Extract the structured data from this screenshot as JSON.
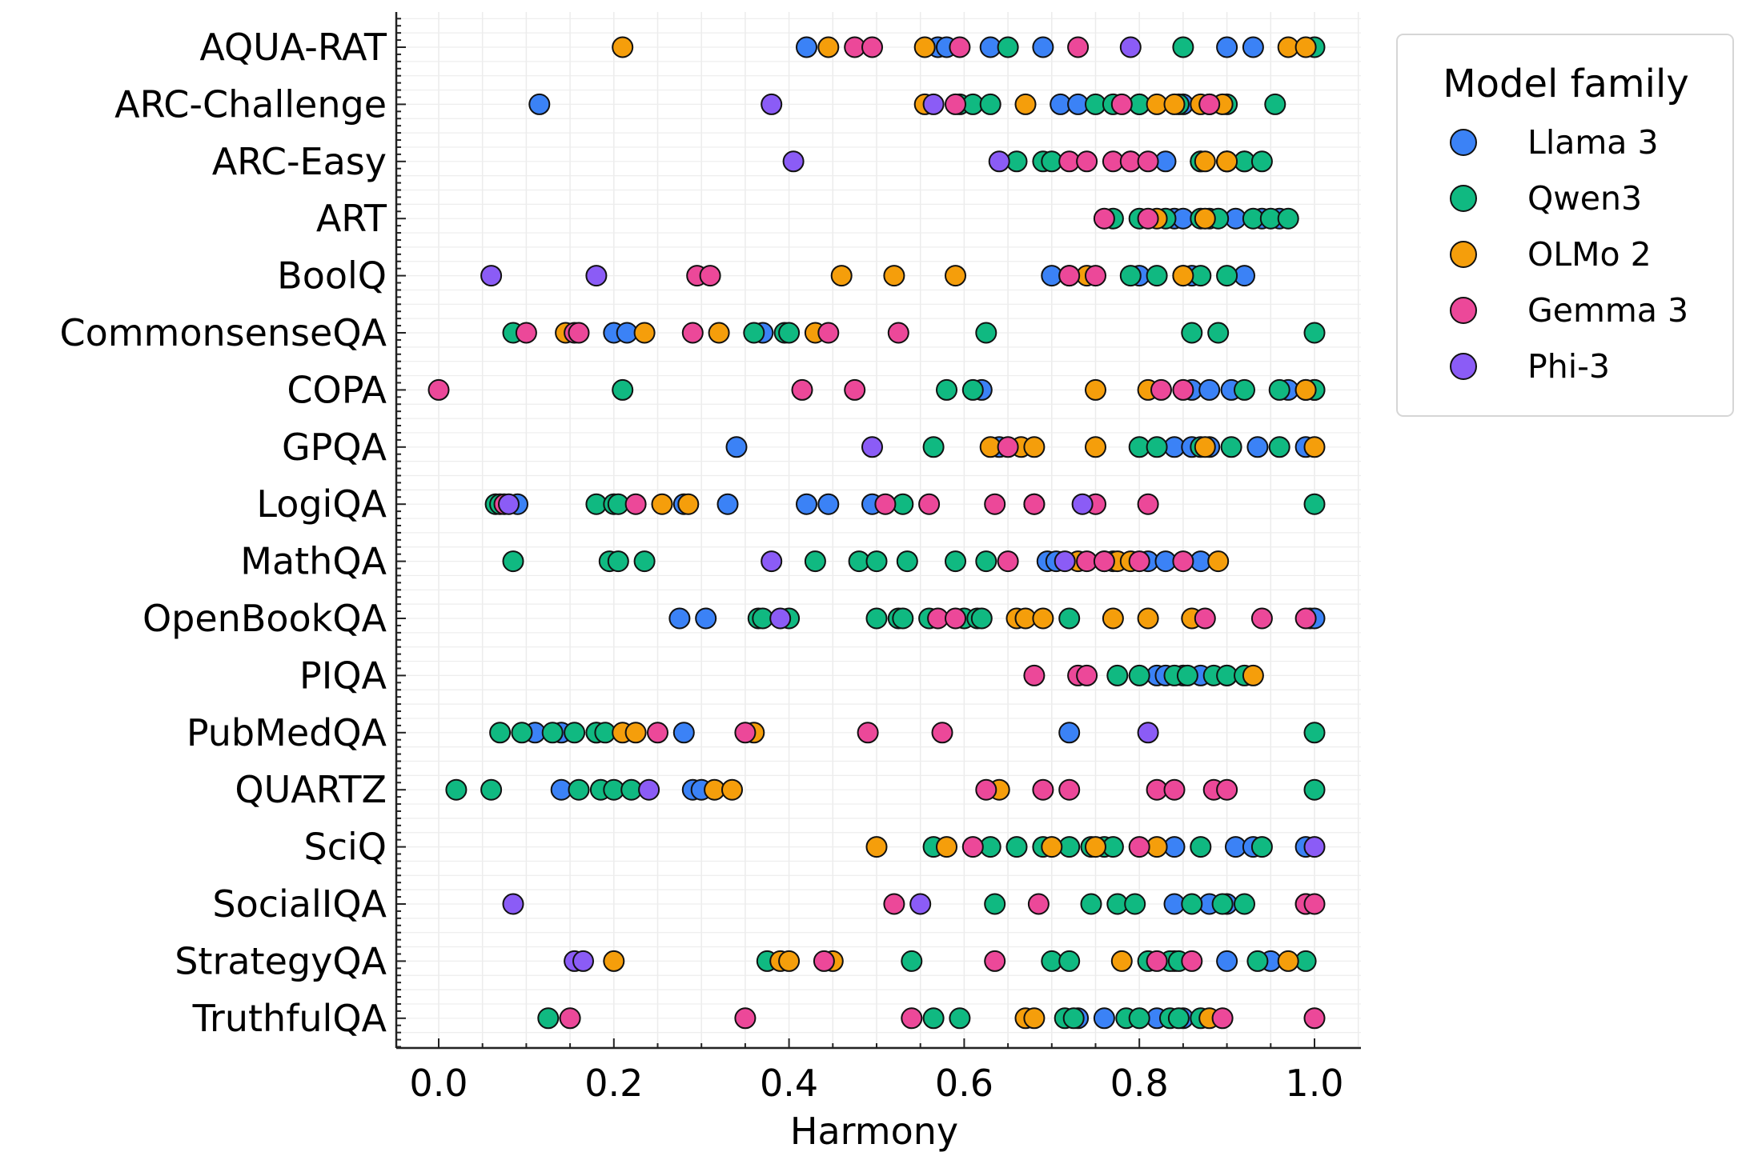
{
  "chart_data": {
    "type": "scatter",
    "title": "",
    "xlabel": "Harmony",
    "ylabel": "",
    "xlim": [
      -0.05,
      1.05
    ],
    "xticks": [
      0.0,
      0.2,
      0.4,
      0.6,
      0.8,
      1.0
    ],
    "xtick_labels": [
      "0.0",
      "0.2",
      "0.4",
      "0.6",
      "0.8",
      "1.0"
    ],
    "grid": true,
    "legend": {
      "title": "Model family",
      "placement": "outside-top-right"
    },
    "categories": [
      "AQUA-RAT",
      "ARC-Challenge",
      "ARC-Easy",
      "ART",
      "BoolQ",
      "CommonsenseQA",
      "COPA",
      "GPQA",
      "LogiQA",
      "MathQA",
      "OpenBookQA",
      "PIQA",
      "PubMedQA",
      "QUARTZ",
      "SciQ",
      "SocialIQA",
      "StrategyQA",
      "TruthfulQA"
    ],
    "series": [
      {
        "name": "Llama 3",
        "color": "#3b82f6",
        "points": {
          "AQUA-RAT": [
            0.42,
            0.57,
            0.58,
            0.63,
            0.69,
            0.9,
            0.93
          ],
          "ARC-Challenge": [
            0.115,
            0.71,
            0.73,
            0.8,
            0.85,
            0.88
          ],
          "ARC-Easy": [
            0.79,
            0.83,
            0.87,
            0.9,
            0.92
          ],
          "ART": [
            0.84,
            0.85,
            0.88,
            0.91,
            0.94,
            0.96
          ],
          "BoolQ": [
            0.7,
            0.72,
            0.8,
            0.86,
            0.92
          ],
          "CommonsenseQA": [
            0.2,
            0.215,
            0.37
          ],
          "COPA": [
            0.62,
            0.86,
            0.88,
            0.905,
            0.97,
            0.99,
            1.0
          ],
          "GPQA": [
            0.34,
            0.64,
            0.84,
            0.86,
            0.88,
            0.935,
            0.99
          ],
          "LogiQA": [
            0.09,
            0.28,
            0.33,
            0.42,
            0.445,
            0.495,
            0.68
          ],
          "MathQA": [
            0.695,
            0.705,
            0.76,
            0.77,
            0.81,
            0.83,
            0.87
          ],
          "OpenBookQA": [
            0.275,
            0.305,
            0.995,
            1.0
          ],
          "PIQA": [
            0.82,
            0.83,
            0.85,
            0.87,
            0.9
          ],
          "PubMedQA": [
            0.11,
            0.14,
            0.18,
            0.28,
            0.72
          ],
          "QUARTZ": [
            0.14,
            0.29,
            0.3
          ],
          "SciQ": [
            0.84,
            0.91,
            0.93,
            0.99
          ],
          "SocialIQA": [
            0.84,
            0.88,
            0.9
          ],
          "StrategyQA": [
            0.84,
            0.9,
            0.95
          ],
          "TruthfulQA": [
            0.73,
            0.76,
            0.82,
            0.85
          ]
        }
      },
      {
        "name": "Qwen3",
        "color": "#10b981",
        "points": {
          "AQUA-RAT": [
            0.65,
            0.85,
            1.0
          ],
          "ARC-Challenge": [
            0.595,
            0.61,
            0.63,
            0.75,
            0.77,
            0.8,
            0.845,
            0.9,
            0.955
          ],
          "ARC-Easy": [
            0.66,
            0.69,
            0.7,
            0.87,
            0.9,
            0.92,
            0.94
          ],
          "ART": [
            0.77,
            0.8,
            0.83,
            0.87,
            0.89,
            0.93,
            0.95,
            0.97
          ],
          "BoolQ": [
            0.79,
            0.82,
            0.85,
            0.87,
            0.9
          ],
          "CommonsenseQA": [
            0.085,
            0.36,
            0.395,
            0.4,
            0.625,
            0.86,
            0.89,
            1.0
          ],
          "COPA": [
            0.21,
            0.58,
            0.61,
            0.92,
            0.96,
            1.0
          ],
          "GPQA": [
            0.565,
            0.8,
            0.82,
            0.87,
            0.905,
            0.96
          ],
          "LogiQA": [
            0.065,
            0.07,
            0.18,
            0.2,
            0.205,
            0.53,
            1.0
          ],
          "MathQA": [
            0.085,
            0.195,
            0.205,
            0.235,
            0.43,
            0.48,
            0.5,
            0.535,
            0.59,
            0.625
          ],
          "OpenBookQA": [
            0.365,
            0.37,
            0.4,
            0.5,
            0.525,
            0.53,
            0.56,
            0.6,
            0.615,
            0.62,
            0.72
          ],
          "PIQA": [
            0.775,
            0.8,
            0.84,
            0.855,
            0.885,
            0.9,
            0.92
          ],
          "PubMedQA": [
            0.07,
            0.095,
            0.13,
            0.155,
            0.18,
            0.19,
            1.0
          ],
          "QUARTZ": [
            0.02,
            0.06,
            0.16,
            0.185,
            0.2,
            0.22,
            1.0
          ],
          "SciQ": [
            0.565,
            0.63,
            0.66,
            0.69,
            0.72,
            0.745,
            0.76,
            0.77,
            0.87,
            0.94
          ],
          "SocialIQA": [
            0.635,
            0.745,
            0.775,
            0.795,
            0.86,
            0.895,
            0.92
          ],
          "StrategyQA": [
            0.375,
            0.54,
            0.7,
            0.72,
            0.81,
            0.835,
            0.845,
            0.935,
            0.99
          ],
          "TruthfulQA": [
            0.125,
            0.565,
            0.595,
            0.715,
            0.725,
            0.785,
            0.8,
            0.835,
            0.845,
            0.87
          ]
        }
      },
      {
        "name": "OLMo 2",
        "color": "#f59e0b",
        "points": {
          "AQUA-RAT": [
            0.21,
            0.445,
            0.555,
            0.97,
            0.99
          ],
          "ARC-Challenge": [
            0.555,
            0.67,
            0.82,
            0.84,
            0.87,
            0.895
          ],
          "ARC-Easy": [
            0.875,
            0.9
          ],
          "ART": [
            0.82,
            0.875
          ],
          "BoolQ": [
            0.46,
            0.52,
            0.59,
            0.74,
            0.85
          ],
          "CommonsenseQA": [
            0.145,
            0.235,
            0.32,
            0.43
          ],
          "COPA": [
            0.75,
            0.81,
            0.99
          ],
          "GPQA": [
            0.63,
            0.665,
            0.68,
            0.75,
            0.875,
            1.0
          ],
          "LogiQA": [
            0.255,
            0.285
          ],
          "MathQA": [
            0.73,
            0.775,
            0.79,
            0.89
          ],
          "OpenBookQA": [
            0.66,
            0.67,
            0.69,
            0.77,
            0.81,
            0.86
          ],
          "PIQA": [
            0.93
          ],
          "PubMedQA": [
            0.21,
            0.225,
            0.36
          ],
          "QUARTZ": [
            0.315,
            0.335,
            0.64
          ],
          "SciQ": [
            0.5,
            0.58,
            0.7,
            0.75,
            0.82
          ],
          "SocialIQA": [
            0.99
          ],
          "StrategyQA": [
            0.2,
            0.39,
            0.4,
            0.45,
            0.78,
            0.97
          ],
          "TruthfulQA": [
            0.67,
            0.68,
            0.88
          ]
        }
      },
      {
        "name": "Gemma 3",
        "color": "#ec4899",
        "points": {
          "AQUA-RAT": [
            0.475,
            0.495,
            0.595,
            0.73
          ],
          "ARC-Challenge": [
            0.59,
            0.78,
            0.88
          ],
          "ARC-Easy": [
            0.72,
            0.74,
            0.77,
            0.79,
            0.81
          ],
          "ART": [
            0.76,
            0.81
          ],
          "BoolQ": [
            0.295,
            0.31,
            0.72,
            0.75
          ],
          "CommonsenseQA": [
            0.1,
            0.155,
            0.16,
            0.29,
            0.445,
            0.525
          ],
          "COPA": [
            0.0,
            0.415,
            0.475,
            0.825,
            0.85
          ],
          "GPQA": [
            0.65
          ],
          "LogiQA": [
            0.075,
            0.225,
            0.51,
            0.56,
            0.635,
            0.68,
            0.75,
            0.81
          ],
          "MathQA": [
            0.65,
            0.74,
            0.76,
            0.8,
            0.85
          ],
          "OpenBookQA": [
            0.57,
            0.59,
            0.875,
            0.94,
            0.99
          ],
          "PIQA": [
            0.68,
            0.73,
            0.74
          ],
          "PubMedQA": [
            0.25,
            0.35,
            0.49,
            0.575
          ],
          "QUARTZ": [
            0.625,
            0.69,
            0.72,
            0.82,
            0.84,
            0.885,
            0.9
          ],
          "SciQ": [
            0.61,
            0.8
          ],
          "SocialIQA": [
            0.52,
            0.685,
            0.99,
            1.0
          ],
          "StrategyQA": [
            0.44,
            0.635,
            0.82,
            0.86
          ],
          "TruthfulQA": [
            0.15,
            0.35,
            0.54,
            0.895,
            1.0
          ]
        }
      },
      {
        "name": "Phi-3",
        "color": "#8b5cf6",
        "points": {
          "AQUA-RAT": [
            0.79
          ],
          "ARC-Challenge": [
            0.38,
            0.565
          ],
          "ARC-Easy": [
            0.405,
            0.64
          ],
          "ART": [],
          "BoolQ": [
            0.06,
            0.18
          ],
          "CommonsenseQA": [],
          "COPA": [],
          "GPQA": [
            0.495
          ],
          "LogiQA": [
            0.08,
            0.735
          ],
          "MathQA": [
            0.38,
            0.715
          ],
          "OpenBookQA": [
            0.39
          ],
          "PIQA": [],
          "PubMedQA": [
            0.81
          ],
          "QUARTZ": [
            0.24
          ],
          "SciQ": [
            1.0
          ],
          "SocialIQA": [
            0.085,
            0.55
          ],
          "StrategyQA": [
            0.155,
            0.165
          ],
          "TruthfulQA": []
        }
      }
    ]
  }
}
